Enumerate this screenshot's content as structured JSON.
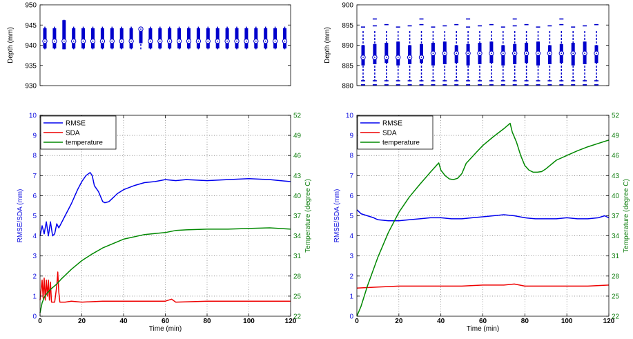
{
  "charts": [
    {
      "id": "left",
      "box": {
        "ylabel": "Depth (mm)",
        "ylim": [
          930,
          950
        ],
        "yticks": [
          "930",
          "935",
          "940",
          "945",
          "950"
        ],
        "n_boxes": 26,
        "median": 941,
        "color": "#0000cc"
      },
      "line": {
        "type": "line",
        "xlabel": "Time (min)",
        "ylabel_left": "RMSE/SDA (mm)",
        "ylabel_right": "Temperature (degree C)",
        "xlim": [
          0,
          120
        ],
        "ylim_left": [
          0,
          10
        ],
        "ylim_right": [
          22,
          52
        ],
        "xticks": [
          "0",
          "20",
          "40",
          "60",
          "80",
          "100",
          "120"
        ],
        "yticks_left": [
          "0",
          "1",
          "2",
          "3",
          "4",
          "5",
          "6",
          "7",
          "8",
          "9",
          "10"
        ],
        "yticks_right": [
          "22",
          "25",
          "28",
          "31",
          "34",
          "37",
          "40",
          "43",
          "46",
          "49",
          "52"
        ],
        "legend": [
          "RMSE",
          "SDA",
          "temperature"
        ],
        "legend_position": "top-left",
        "grid": true,
        "series": [
          {
            "name": "RMSE",
            "axis": "left",
            "color": "#0000ee",
            "x": [
              0,
              1,
              2,
              3,
              4,
              5,
              6,
              7,
              8,
              9,
              10,
              12,
              15,
              18,
              20,
              22,
              24,
              25,
              26,
              28,
              30,
              31,
              33,
              35,
              37,
              40,
              45,
              50,
              55,
              60,
              65,
              70,
              80,
              90,
              100,
              110,
              115,
              120
            ],
            "y": [
              4.0,
              4.5,
              4.1,
              4.7,
              4.0,
              4.7,
              4.0,
              4.1,
              4.6,
              4.4,
              4.6,
              5.0,
              5.6,
              6.3,
              6.7,
              7.0,
              7.15,
              7.0,
              6.5,
              6.2,
              5.7,
              5.65,
              5.7,
              5.9,
              6.1,
              6.3,
              6.5,
              6.65,
              6.7,
              6.8,
              6.75,
              6.8,
              6.75,
              6.8,
              6.85,
              6.8,
              6.75,
              6.7
            ]
          },
          {
            "name": "SDA",
            "axis": "left",
            "color": "#ee0000",
            "x": [
              0,
              1,
              1.5,
              2,
              2.5,
              3,
              3.5,
              4,
              4.5,
              5,
              5.5,
              6,
              7,
              8,
              8.5,
              9,
              9.5,
              10,
              12,
              15,
              20,
              30,
              40,
              60,
              63,
              65,
              80,
              100,
              120
            ],
            "y": [
              0.8,
              1.8,
              0.9,
              1.9,
              0.8,
              1.8,
              1.0,
              1.8,
              0.8,
              1.7,
              0.7,
              0.7,
              0.7,
              1.5,
              2.2,
              1.2,
              0.7,
              0.7,
              0.7,
              0.75,
              0.7,
              0.75,
              0.75,
              0.75,
              0.85,
              0.7,
              0.75,
              0.75,
              0.75
            ]
          },
          {
            "name": "temperature",
            "axis": "right",
            "color": "#008800",
            "x": [
              0,
              1,
              2,
              3,
              5,
              8,
              10,
              15,
              20,
              25,
              30,
              40,
              50,
              60,
              65,
              70,
              80,
              90,
              100,
              110,
              120
            ],
            "y": [
              22.5,
              24.0,
              24.8,
              25.3,
              26.0,
              26.8,
              27.5,
              29.0,
              30.3,
              31.3,
              32.2,
              33.5,
              34.2,
              34.5,
              34.8,
              34.9,
              35.0,
              35.0,
              35.1,
              35.2,
              35.0
            ]
          }
        ]
      }
    },
    {
      "id": "right",
      "box": {
        "ylabel": "Depth (mm)",
        "ylim": [
          880,
          900
        ],
        "yticks": [
          "880",
          "885",
          "890",
          "895",
          "900"
        ],
        "n_boxes": 21,
        "median": 888,
        "color": "#0000cc"
      },
      "line": {
        "type": "line",
        "xlabel": "Time (min)",
        "ylabel_left": "RMSE/SDA (mm)",
        "ylabel_right": "Temperature (degree C)",
        "xlim": [
          0,
          120
        ],
        "ylim_left": [
          0,
          10
        ],
        "ylim_right": [
          22,
          52
        ],
        "xticks": [
          "0",
          "20",
          "40",
          "60",
          "80",
          "100",
          "120"
        ],
        "yticks_left": [
          "0",
          "1",
          "2",
          "3",
          "4",
          "5",
          "6",
          "7",
          "8",
          "9",
          "10"
        ],
        "yticks_right": [
          "22",
          "25",
          "28",
          "31",
          "34",
          "37",
          "40",
          "43",
          "46",
          "49",
          "52"
        ],
        "legend": [
          "RMSE",
          "SDA",
          "temperature"
        ],
        "legend_position": "top-left",
        "grid": true,
        "series": [
          {
            "name": "RMSE",
            "axis": "left",
            "color": "#0000ee",
            "x": [
              0,
              2,
              5,
              8,
              10,
              15,
              20,
              25,
              30,
              35,
              40,
              45,
              50,
              55,
              60,
              65,
              70,
              75,
              80,
              85,
              90,
              95,
              100,
              105,
              110,
              115,
              118,
              120
            ],
            "y": [
              5.3,
              5.1,
              5.0,
              4.9,
              4.8,
              4.75,
              4.75,
              4.8,
              4.85,
              4.9,
              4.9,
              4.85,
              4.85,
              4.9,
              4.95,
              5.0,
              5.05,
              5.0,
              4.9,
              4.85,
              4.85,
              4.85,
              4.9,
              4.85,
              4.85,
              4.9,
              5.0,
              4.9
            ]
          },
          {
            "name": "SDA",
            "axis": "left",
            "color": "#ee0000",
            "x": [
              0,
              10,
              20,
              30,
              40,
              50,
              60,
              70,
              75,
              80,
              90,
              100,
              110,
              120
            ],
            "y": [
              1.4,
              1.45,
              1.5,
              1.5,
              1.5,
              1.5,
              1.55,
              1.55,
              1.6,
              1.5,
              1.5,
              1.5,
              1.5,
              1.55
            ]
          },
          {
            "name": "temperature",
            "axis": "right",
            "color": "#008800",
            "x": [
              0,
              2,
              5,
              10,
              15,
              20,
              25,
              30,
              35,
              39,
              40,
              42,
              44,
              46,
              48,
              50,
              52,
              54,
              57,
              60,
              65,
              70,
              73,
              74,
              76,
              78,
              80,
              82,
              84,
              86,
              88,
              90,
              95,
              100,
              105,
              110,
              115,
              120
            ],
            "y": [
              22,
              23.5,
              26.5,
              30.8,
              34.5,
              37.5,
              39.8,
              41.7,
              43.5,
              44.9,
              43.8,
              43.0,
              42.5,
              42.4,
              42.6,
              43.3,
              44.8,
              45.5,
              46.5,
              47.5,
              48.8,
              50.0,
              50.8,
              49.5,
              48.0,
              46.0,
              44.5,
              43.8,
              43.5,
              43.5,
              43.6,
              44.0,
              45.3,
              46.0,
              46.7,
              47.3,
              47.8,
              48.3
            ]
          }
        ]
      }
    }
  ]
}
